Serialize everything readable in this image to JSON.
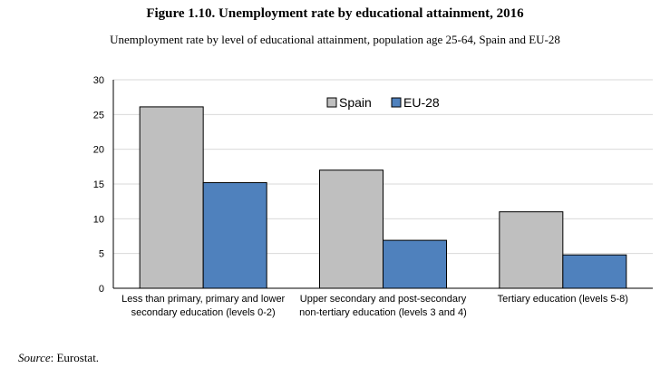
{
  "figure": {
    "title": "Figure 1.10. Unemployment rate by educational attainment, 2016",
    "subtitle": "Unemployment rate by level of educational attainment, population age 25-64, Spain and EU-28"
  },
  "source": {
    "label": "Source",
    "text": ": Eurostat."
  },
  "chart_data": {
    "type": "bar",
    "categories": [
      [
        "Less than primary, primary and lower",
        "secondary education (levels 0-2)"
      ],
      [
        "Upper secondary and post-secondary",
        "non-tertiary education (levels 3 and 4)"
      ],
      [
        "Tertiary education (levels 5-8)"
      ]
    ],
    "series": [
      {
        "name": "Spain",
        "values": [
          26.1,
          17.0,
          11.0
        ],
        "color": "#bfbfbf"
      },
      {
        "name": "EU-28",
        "values": [
          15.2,
          6.9,
          4.8
        ],
        "color": "#4f81bd"
      }
    ],
    "ylim": [
      0,
      30
    ],
    "yticks": [
      0,
      5,
      10,
      15,
      20,
      25,
      30
    ],
    "grid": true,
    "legend": "top-center"
  }
}
